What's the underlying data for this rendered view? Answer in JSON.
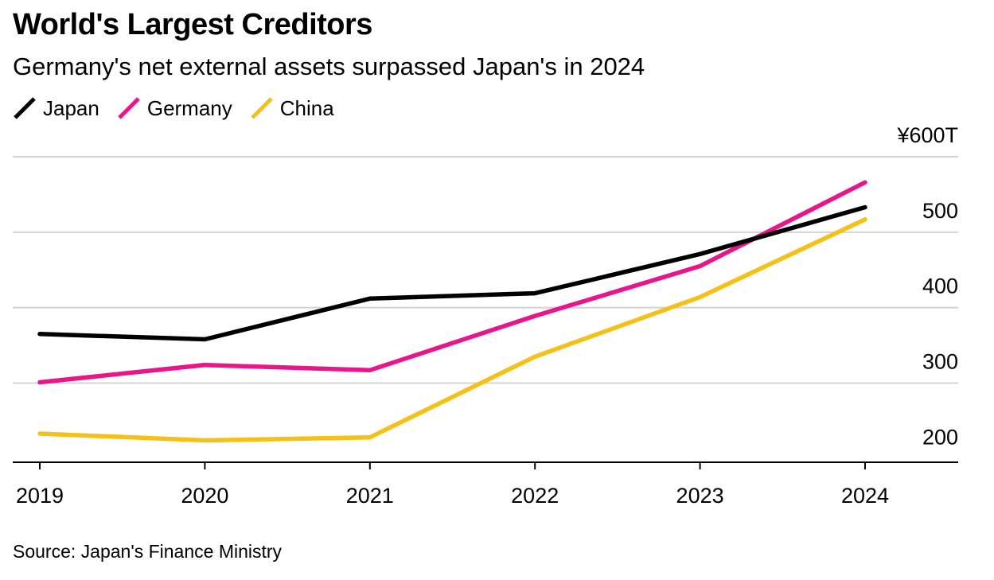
{
  "header": {
    "title": "World's Largest Creditors",
    "subtitle": "Germany's net external assets surpassed Japan's in 2024"
  },
  "footer": {
    "source": "Source: Japan's Finance Ministry"
  },
  "chart_data": {
    "type": "line",
    "title": "World's Largest Creditors",
    "subtitle": "Germany's net external assets surpassed Japan's in 2024",
    "x": [
      "2019",
      "2020",
      "2021",
      "2022",
      "2023",
      "2024"
    ],
    "x_tick_labels": [
      "2019",
      "2020",
      "2021",
      "2022",
      "2023",
      "2024"
    ],
    "series": [
      {
        "name": "Japan",
        "color": "#000000",
        "values": [
          365,
          358,
          412,
          419,
          471,
          533
        ]
      },
      {
        "name": "Germany",
        "color": "#E8158B",
        "values": [
          301,
          324,
          317,
          389,
          455,
          566
        ]
      },
      {
        "name": "China",
        "color": "#F5C116",
        "values": [
          233,
          224,
          228,
          335,
          414,
          517
        ]
      }
    ],
    "y_ticks": [
      200,
      300,
      400,
      500,
      600
    ],
    "y_tick_labels": [
      "200",
      "300",
      "400",
      "500",
      "¥600T"
    ],
    "ylim": [
      195,
      600
    ],
    "y_axis_position": "right",
    "grid": true,
    "legend_position": "top-left",
    "source": "Source: Japan's Finance Ministry"
  }
}
